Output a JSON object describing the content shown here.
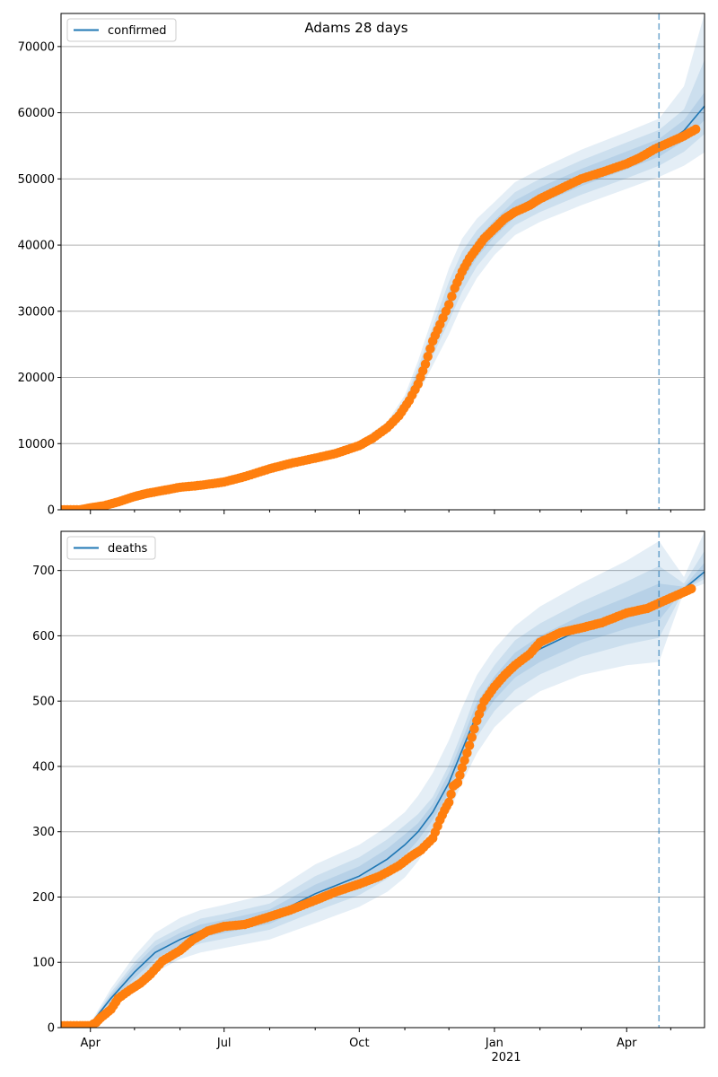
{
  "figure": {
    "title": "Adams 28 days",
    "x_tick_labels": [
      "Apr",
      "Jul",
      "Oct",
      "Jan",
      "Apr"
    ],
    "x_year_label": "2021"
  },
  "colors": {
    "model_line": "#1f77b4",
    "band": "#1f77b4",
    "observed": "#ff7f0e",
    "grid": "#b0b0b0",
    "forecast_marker": "#1f77b4"
  },
  "chart_data": [
    {
      "type": "line",
      "panel": "top",
      "legend": "confirmed",
      "legend_position": "top-left",
      "grid": "horizontal",
      "x_axis": "dates",
      "xlim": [
        "2020-03-12",
        "2021-05-24"
      ],
      "ylim": [
        0,
        75000
      ],
      "y_ticks": [
        0,
        10000,
        20000,
        30000,
        40000,
        50000,
        60000,
        70000
      ],
      "forecast_start": "2021-04-23",
      "model": {
        "x": [
          "2020-03-12",
          "2020-04-01",
          "2020-04-20",
          "2020-05-10",
          "2020-06-01",
          "2020-07-01",
          "2020-08-01",
          "2020-09-01",
          "2020-10-01",
          "2020-10-20",
          "2020-11-01",
          "2020-11-10",
          "2020-11-20",
          "2020-12-01",
          "2020-12-10",
          "2020-12-20",
          "2021-01-01",
          "2021-01-15",
          "2021-02-01",
          "2021-03-01",
          "2021-04-01",
          "2021-04-23",
          "2021-05-10",
          "2021-05-24"
        ],
        "y": [
          0,
          300,
          1200,
          2500,
          3500,
          4300,
          6200,
          8000,
          9800,
          12500,
          15800,
          20000,
          25500,
          31500,
          36000,
          39500,
          42500,
          45500,
          47500,
          50200,
          52800,
          54700,
          57300,
          61000
        ]
      },
      "bands": [
        {
          "lower": [
            0,
            250,
            1000,
            2200,
            3100,
            3900,
            5800,
            7600,
            9300,
            11700,
            14300,
            17500,
            21800,
            26500,
            31000,
            35000,
            38500,
            41500,
            43500,
            46000,
            48500,
            50300,
            52000,
            54000
          ],
          "upper": [
            0,
            350,
            1400,
            2800,
            3900,
            4700,
            6600,
            8400,
            10300,
            13300,
            17300,
            22500,
            29200,
            36500,
            41000,
            44000,
            46500,
            49500,
            51500,
            54400,
            57100,
            59100,
            64000,
            75000
          ]
        },
        {
          "lower": [
            0,
            270,
            1080,
            2320,
            3260,
            4060,
            5960,
            7760,
            9500,
            12020,
            14900,
            18500,
            23300,
            28500,
            33000,
            36800,
            40000,
            43000,
            45000,
            47600,
            50100,
            52000,
            54100,
            56800
          ],
          "upper": [
            0,
            330,
            1320,
            2680,
            3740,
            4540,
            6440,
            8240,
            10100,
            12980,
            16700,
            21500,
            27700,
            34500,
            39000,
            42200,
            45000,
            48000,
            50000,
            52800,
            55500,
            57400,
            60500,
            68000
          ]
        },
        {
          "lower": [
            0,
            285,
            1140,
            2410,
            3380,
            4180,
            6080,
            7880,
            9650,
            12260,
            15350,
            19250,
            24400,
            30000,
            34500,
            38150,
            41250,
            44250,
            46250,
            48900,
            51450,
            53350,
            55700,
            58900
          ],
          "upper": [
            0,
            315,
            1260,
            2590,
            3620,
            4420,
            6320,
            8120,
            9950,
            12740,
            16250,
            20750,
            26600,
            33000,
            37500,
            40850,
            43750,
            46750,
            48750,
            51500,
            54150,
            56050,
            58900,
            63100
          ]
        }
      ],
      "observed": {
        "x": [
          "2020-03-12",
          "2020-03-25",
          "2020-04-01",
          "2020-04-10",
          "2020-04-20",
          "2020-05-01",
          "2020-05-10",
          "2020-05-20",
          "2020-06-01",
          "2020-06-15",
          "2020-07-01",
          "2020-07-15",
          "2020-08-01",
          "2020-08-15",
          "2020-09-01",
          "2020-09-15",
          "2020-10-01",
          "2020-10-10",
          "2020-10-20",
          "2020-10-28",
          "2020-11-04",
          "2020-11-10",
          "2020-11-15",
          "2020-11-20",
          "2020-11-25",
          "2020-12-01",
          "2020-12-05",
          "2020-12-10",
          "2020-12-15",
          "2020-12-20",
          "2020-12-25",
          "2021-01-01",
          "2021-01-08",
          "2021-01-15",
          "2021-01-25",
          "2021-02-01",
          "2021-02-15",
          "2021-03-01",
          "2021-03-15",
          "2021-04-01",
          "2021-04-10",
          "2021-04-20",
          "2021-04-30",
          "2021-05-10",
          "2021-05-18"
        ],
        "y": [
          0,
          0,
          300,
          600,
          1200,
          2000,
          2500,
          2900,
          3400,
          3700,
          4200,
          5000,
          6200,
          7000,
          7800,
          8500,
          9700,
          10800,
          12400,
          14200,
          16500,
          19000,
          22000,
          25500,
          28000,
          31000,
          33500,
          36000,
          38000,
          39500,
          41000,
          42500,
          44000,
          45000,
          46000,
          47000,
          48500,
          50000,
          51000,
          52300,
          53200,
          54500,
          55500,
          56500,
          57500
        ]
      }
    },
    {
      "type": "line",
      "panel": "bottom",
      "legend": "deaths",
      "legend_position": "top-left",
      "grid": "horizontal",
      "x_axis": "dates",
      "xlim": [
        "2020-03-12",
        "2021-05-24"
      ],
      "ylim": [
        0,
        760
      ],
      "y_ticks": [
        0,
        100,
        200,
        300,
        400,
        500,
        600,
        700
      ],
      "forecast_start": "2021-04-23",
      "model": {
        "x": [
          "2020-03-12",
          "2020-04-01",
          "2020-04-15",
          "2020-05-01",
          "2020-05-15",
          "2020-06-01",
          "2020-06-15",
          "2020-07-01",
          "2020-08-01",
          "2020-09-01",
          "2020-10-01",
          "2020-10-20",
          "2020-11-01",
          "2020-11-10",
          "2020-11-20",
          "2020-12-01",
          "2020-12-10",
          "2020-12-20",
          "2021-01-01",
          "2021-01-15",
          "2021-02-01",
          "2021-03-01",
          "2021-04-01",
          "2021-04-23",
          "2021-05-10",
          "2021-05-24"
        ],
        "y": [
          0,
          5,
          45,
          85,
          115,
          135,
          148,
          155,
          170,
          205,
          232,
          258,
          280,
          300,
          330,
          375,
          425,
          480,
          520,
          555,
          580,
          610,
          635,
          652,
          672,
          698
        ]
      },
      "bands": [
        {
          "lower": [
            0,
            3,
            30,
            60,
            85,
            105,
            115,
            122,
            135,
            160,
            185,
            208,
            230,
            255,
            290,
            330,
            375,
            420,
            460,
            490,
            515,
            540,
            555,
            560,
            668,
            680
          ],
          "upper": [
            0,
            7,
            60,
            110,
            145,
            168,
            180,
            188,
            205,
            250,
            280,
            308,
            330,
            355,
            390,
            440,
            490,
            540,
            580,
            615,
            645,
            680,
            715,
            745,
            690,
            760
          ]
        },
        {
          "lower": [
            0,
            4,
            36,
            70,
            97,
            117,
            129,
            136,
            150,
            178,
            203,
            228,
            250,
            274,
            307,
            348,
            397,
            445,
            485,
            517,
            541,
            568,
            587,
            597,
            670,
            687
          ],
          "upper": [
            0,
            6,
            54,
            100,
            133,
            153,
            167,
            174,
            190,
            232,
            261,
            288,
            310,
            327,
            353,
            402,
            453,
            515,
            555,
            593,
            619,
            652,
            683,
            707,
            680,
            730
          ]
        },
        {
          "lower": [
            0,
            4.5,
            40,
            76,
            105,
            125,
            138,
            145,
            159,
            191,
            217,
            242,
            264,
            287,
            318,
            360,
            410,
            462,
            502,
            536,
            560,
            589,
            611,
            624,
            671,
            692
          ],
          "upper": [
            0,
            5.5,
            50,
            94,
            125,
            145,
            158,
            165,
            181,
            219,
            247,
            274,
            296,
            313,
            342,
            390,
            440,
            498,
            538,
            574,
            600,
            631,
            659,
            680,
            675,
            712
          ]
        }
      ],
      "observed": {
        "x": [
          "2020-03-12",
          "2020-03-25",
          "2020-04-01",
          "2020-04-05",
          "2020-04-08",
          "2020-04-15",
          "2020-04-20",
          "2020-04-28",
          "2020-05-05",
          "2020-05-12",
          "2020-05-20",
          "2020-06-01",
          "2020-06-10",
          "2020-06-20",
          "2020-07-01",
          "2020-07-15",
          "2020-08-01",
          "2020-08-15",
          "2020-09-01",
          "2020-09-15",
          "2020-10-01",
          "2020-10-15",
          "2020-10-28",
          "2020-11-05",
          "2020-11-12",
          "2020-11-20",
          "2020-11-25",
          "2020-11-28",
          "2020-12-01",
          "2020-12-04",
          "2020-12-07",
          "2020-12-10",
          "2020-12-15",
          "2020-12-20",
          "2020-12-25",
          "2021-01-01",
          "2021-01-08",
          "2021-01-15",
          "2021-01-25",
          "2021-02-01",
          "2021-02-15",
          "2021-03-01",
          "2021-03-15",
          "2021-04-01",
          "2021-04-15",
          "2021-04-25",
          "2021-05-05",
          "2021-05-15"
        ],
        "y": [
          3,
          3,
          3,
          8,
          15,
          28,
          45,
          58,
          68,
          82,
          102,
          118,
          135,
          148,
          155,
          158,
          170,
          180,
          195,
          208,
          220,
          232,
          248,
          262,
          272,
          290,
          318,
          333,
          345,
          370,
          375,
          398,
          432,
          470,
          500,
          522,
          540,
          555,
          572,
          590,
          605,
          612,
          620,
          635,
          642,
          652,
          662,
          672
        ]
      }
    }
  ]
}
